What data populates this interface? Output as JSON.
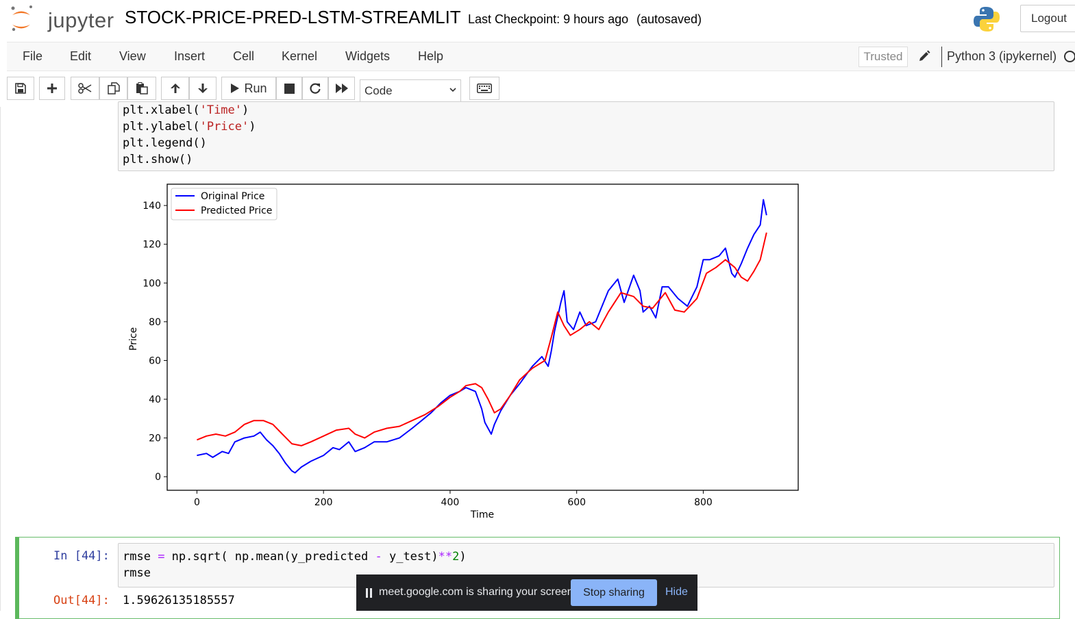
{
  "header": {
    "logo_text": "jupyter",
    "notebook_title": "STOCK-PRICE-PRED-LSTM-STREAMLIT",
    "checkpoint": "Last Checkpoint: 9 hours ago",
    "autosave_status": "(autosaved)",
    "logout_label": "Logout"
  },
  "menubar": {
    "items": [
      "File",
      "Edit",
      "View",
      "Insert",
      "Cell",
      "Kernel",
      "Widgets",
      "Help"
    ],
    "trusted_label": "Trusted",
    "kernel_name": "Python 3 (ipykernel)"
  },
  "toolbar": {
    "run_label": "Run",
    "cell_type": "Code",
    "icons": [
      "save-icon",
      "plus-icon",
      "cut-icon",
      "copy-icon",
      "paste-icon",
      "arrow-up-icon",
      "arrow-down-icon",
      "run-icon",
      "stop-icon",
      "restart-icon",
      "fast-forward-icon",
      "keyboard-icon"
    ]
  },
  "cells": {
    "prev_code_lines": [
      "plt.xlabel('Time')",
      "plt.ylabel('Price')",
      "plt.legend()",
      "plt.show()"
    ],
    "active": {
      "prompt_in": "In [44]:",
      "code_line_1": "rmse = np.sqrt( np.mean(y_predicted - y_test)**2)",
      "code_line_2": "rmse",
      "prompt_out": "Out[44]:",
      "output_value": "1.59626135185557"
    }
  },
  "chart_data": {
    "type": "line",
    "xlabel": "Time",
    "ylabel": "Price",
    "xlim": [
      -47,
      950
    ],
    "ylim": [
      -7,
      151
    ],
    "xticks": [
      0,
      200,
      400,
      600,
      800
    ],
    "yticks": [
      0,
      20,
      40,
      60,
      80,
      100,
      120,
      140
    ],
    "legend_position": "top-left",
    "series": [
      {
        "name": "Original Price",
        "color": "#0000ff",
        "x": [
          0,
          15,
          25,
          40,
          50,
          60,
          75,
          90,
          100,
          110,
          120,
          130,
          140,
          150,
          155,
          165,
          180,
          200,
          215,
          225,
          240,
          250,
          265,
          280,
          300,
          320,
          340,
          355,
          370,
          385,
          400,
          415,
          425,
          440,
          450,
          455,
          465,
          470,
          480,
          495,
          510,
          530,
          545,
          555,
          560,
          565,
          575,
          580,
          585,
          595,
          605,
          615,
          630,
          650,
          665,
          675,
          690,
          700,
          705,
          715,
          725,
          735,
          745,
          760,
          775,
          790,
          800,
          810,
          825,
          835,
          845,
          850,
          860,
          870,
          880,
          890,
          895,
          900
        ],
        "y": [
          11,
          12,
          10,
          13,
          12,
          18,
          20,
          21,
          23,
          19,
          16,
          12,
          7,
          3,
          2,
          5,
          8,
          11,
          15,
          14,
          18,
          13,
          15,
          18,
          18,
          20,
          25,
          29,
          33,
          38,
          42,
          44,
          46,
          44,
          35,
          28,
          22,
          27,
          34,
          42,
          48,
          57,
          62,
          57,
          65,
          75,
          90,
          96,
          80,
          76,
          85,
          78,
          80,
          96,
          102,
          90,
          104,
          96,
          85,
          88,
          82,
          98,
          98,
          92,
          88,
          98,
          112,
          112,
          114,
          118,
          105,
          103,
          110,
          118,
          125,
          130,
          143,
          135
        ]
      },
      {
        "name": "Predicted Price",
        "color": "#ff0000",
        "x": [
          0,
          15,
          30,
          45,
          60,
          75,
          90,
          105,
          120,
          135,
          150,
          165,
          180,
          200,
          220,
          240,
          250,
          265,
          280,
          300,
          320,
          340,
          360,
          380,
          400,
          415,
          425,
          440,
          450,
          460,
          470,
          480,
          495,
          510,
          530,
          550,
          560,
          570,
          580,
          590,
          605,
          620,
          635,
          650,
          670,
          690,
          705,
          720,
          740,
          755,
          770,
          790,
          805,
          820,
          835,
          850,
          860,
          870,
          880,
          890,
          900
        ],
        "y": [
          19,
          21,
          22,
          21,
          23,
          27,
          29,
          29,
          27,
          22,
          17,
          16,
          18,
          21,
          24,
          25,
          22,
          20,
          23,
          25,
          26,
          29,
          32,
          36,
          41,
          44,
          47,
          48,
          46,
          40,
          33,
          35,
          42,
          50,
          56,
          60,
          72,
          85,
          78,
          73,
          76,
          80,
          76,
          85,
          95,
          93,
          88,
          87,
          95,
          86,
          85,
          92,
          105,
          108,
          112,
          108,
          103,
          101,
          106,
          112,
          126
        ]
      }
    ]
  },
  "share_bar": {
    "message": "meet.google.com is sharing your screen.",
    "stop_label": "Stop sharing",
    "hide_label": "Hide"
  }
}
